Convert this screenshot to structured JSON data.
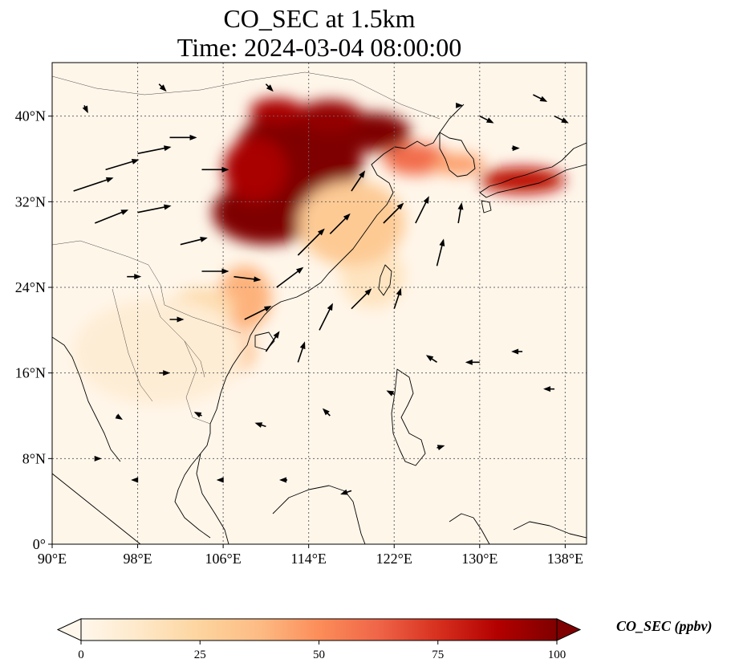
{
  "title": {
    "line1": "CO_SEC at 1.5km",
    "line2": "Time: 2024-03-04 08:00:00"
  },
  "map": {
    "lon_range": [
      90,
      140
    ],
    "lat_range": [
      0,
      45
    ],
    "lon_ticks": [
      {
        "value": 90,
        "label": "90°E"
      },
      {
        "value": 98,
        "label": "98°E"
      },
      {
        "value": 106,
        "label": "106°E"
      },
      {
        "value": 114,
        "label": "114°E"
      },
      {
        "value": 122,
        "label": "122°E"
      },
      {
        "value": 130,
        "label": "130°E"
      },
      {
        "value": 138,
        "label": "138°E"
      }
    ],
    "lat_ticks": [
      {
        "value": 0,
        "label": "0°"
      },
      {
        "value": 8,
        "label": "8°N"
      },
      {
        "value": 16,
        "label": "16°N"
      },
      {
        "value": 24,
        "label": "24°N"
      },
      {
        "value": 32,
        "label": "32°N"
      },
      {
        "value": 40,
        "label": "40°N"
      }
    ],
    "gridlines": true,
    "background_color": "#fff6ea"
  },
  "colorbar": {
    "label": "CO_SEC (ppbv)",
    "min": 0,
    "max": 100,
    "extend": "both",
    "colormap": [
      "#fff7ec",
      "#fee8c8",
      "#fdd49e",
      "#fdbb84",
      "#fc8d59",
      "#ef6548",
      "#d7301f",
      "#b30000",
      "#7f0000"
    ],
    "ticks": [
      {
        "value": 0,
        "label": "0"
      },
      {
        "value": 25,
        "label": "25"
      },
      {
        "value": 50,
        "label": "50"
      },
      {
        "value": 75,
        "label": "75"
      },
      {
        "value": 100,
        "label": "100"
      }
    ]
  },
  "concentration": [
    {
      "lon": 113,
      "lat": 36,
      "rlon": 6,
      "rlat": 5,
      "value": 100
    },
    {
      "lon": 110,
      "lat": 31,
      "rlon": 5,
      "rlat": 3,
      "value": 100
    },
    {
      "lon": 120,
      "lat": 38.5,
      "rlon": 3.5,
      "rlat": 1.8,
      "value": 100
    },
    {
      "lon": 116,
      "lat": 40,
      "rlon": 3,
      "rlat": 1.5,
      "value": 95
    },
    {
      "lon": 111,
      "lat": 40.5,
      "rlon": 2.5,
      "rlat": 1.2,
      "value": 90
    },
    {
      "lon": 109,
      "lat": 35,
      "rlon": 3,
      "rlat": 3,
      "value": 90
    },
    {
      "lon": 124,
      "lat": 36,
      "rlon": 3,
      "rlat": 1.5,
      "value": 60
    },
    {
      "lon": 134,
      "lat": 34,
      "rlon": 4,
      "rlat": 1.2,
      "value": 85
    },
    {
      "lon": 128,
      "lat": 35.5,
      "rlon": 2.5,
      "rlat": 1,
      "value": 45
    },
    {
      "lon": 108,
      "lat": 23,
      "rlon": 2.5,
      "rlat": 3,
      "value": 40
    },
    {
      "lon": 107,
      "lat": 18,
      "rlon": 2,
      "rlat": 2,
      "value": 35
    },
    {
      "lon": 104,
      "lat": 22,
      "rlon": 3,
      "rlat": 2,
      "value": 20
    },
    {
      "lon": 120,
      "lat": 25,
      "rlon": 3,
      "rlat": 3,
      "value": 15
    },
    {
      "lon": 100,
      "lat": 18,
      "rlon": 8,
      "rlat": 5,
      "value": 8
    },
    {
      "lon": 118,
      "lat": 30,
      "rlon": 5,
      "rlat": 4,
      "value": 30
    }
  ],
  "wind_vectors": [
    {
      "lon": 92,
      "lat": 33,
      "u": 6,
      "v": 2
    },
    {
      "lon": 95,
      "lat": 35,
      "u": 5,
      "v": 1.5
    },
    {
      "lon": 98,
      "lat": 36.5,
      "u": 5,
      "v": 1
    },
    {
      "lon": 101,
      "lat": 38,
      "u": 4,
      "v": 0
    },
    {
      "lon": 104,
      "lat": 35,
      "u": 4,
      "v": 0
    },
    {
      "lon": 94,
      "lat": 30,
      "u": 5,
      "v": 2
    },
    {
      "lon": 98,
      "lat": 31,
      "u": 5,
      "v": 1
    },
    {
      "lon": 102,
      "lat": 28,
      "u": 4,
      "v": 1
    },
    {
      "lon": 104,
      "lat": 25.5,
      "u": 4,
      "v": 0
    },
    {
      "lon": 107,
      "lat": 25,
      "u": 4,
      "v": -0.5
    },
    {
      "lon": 108,
      "lat": 21,
      "u": 4,
      "v": 2
    },
    {
      "lon": 111,
      "lat": 24,
      "u": 4,
      "v": 3
    },
    {
      "lon": 113,
      "lat": 27,
      "u": 4,
      "v": 4
    },
    {
      "lon": 116,
      "lat": 29,
      "u": 3,
      "v": 3
    },
    {
      "lon": 118,
      "lat": 33,
      "u": 2,
      "v": 3
    },
    {
      "lon": 121,
      "lat": 30,
      "u": 3,
      "v": 3
    },
    {
      "lon": 124,
      "lat": 30,
      "u": 2,
      "v": 4
    },
    {
      "lon": 126,
      "lat": 26,
      "u": 1,
      "v": 4
    },
    {
      "lon": 128,
      "lat": 30,
      "u": 0.5,
      "v": 3
    },
    {
      "lon": 122,
      "lat": 22,
      "u": 1,
      "v": 3
    },
    {
      "lon": 118,
      "lat": 22,
      "u": 3,
      "v": 3
    },
    {
      "lon": 115,
      "lat": 20,
      "u": 2,
      "v": 4
    },
    {
      "lon": 113,
      "lat": 17,
      "u": 1,
      "v": 3
    },
    {
      "lon": 110,
      "lat": 18,
      "u": 2,
      "v": 3
    },
    {
      "lon": 101,
      "lat": 21,
      "u": 2,
      "v": 0
    },
    {
      "lon": 97,
      "lat": 25,
      "u": 2,
      "v": 0
    },
    {
      "lon": 100,
      "lat": 16,
      "u": 1.5,
      "v": 0
    },
    {
      "lon": 96,
      "lat": 12,
      "u": 0.8,
      "v": -0.5
    },
    {
      "lon": 104,
      "lat": 12,
      "u": -1,
      "v": 0.5
    },
    {
      "lon": 110,
      "lat": 11,
      "u": -1.5,
      "v": 0.5
    },
    {
      "lon": 116,
      "lat": 12,
      "u": -1,
      "v": 1
    },
    {
      "lon": 122,
      "lat": 14,
      "u": -1,
      "v": 0.5
    },
    {
      "lon": 126,
      "lat": 17,
      "u": -1.5,
      "v": 1
    },
    {
      "lon": 130,
      "lat": 17,
      "u": -2,
      "v": 0
    },
    {
      "lon": 134,
      "lat": 18,
      "u": -1.5,
      "v": 0
    },
    {
      "lon": 137,
      "lat": 14.5,
      "u": -1.5,
      "v": 0
    },
    {
      "lon": 126,
      "lat": 9,
      "u": 1,
      "v": 0.3
    },
    {
      "lon": 118,
      "lat": 5,
      "u": -1.5,
      "v": -0.5
    },
    {
      "lon": 112,
      "lat": 6,
      "u": -1,
      "v": 0
    },
    {
      "lon": 106,
      "lat": 6,
      "u": -0.8,
      "v": 0
    },
    {
      "lon": 98,
      "lat": 6,
      "u": -0.8,
      "v": 0
    },
    {
      "lon": 94,
      "lat": 8,
      "u": 0.8,
      "v": 0
    },
    {
      "lon": 130,
      "lat": 40,
      "u": 2,
      "v": -1
    },
    {
      "lon": 135,
      "lat": 42,
      "u": 2,
      "v": -1
    },
    {
      "lon": 137,
      "lat": 40,
      "u": 2,
      "v": -1
    },
    {
      "lon": 133,
      "lat": 37,
      "u": 1,
      "v": 0
    },
    {
      "lon": 128,
      "lat": 41,
      "u": 0.5,
      "v": 0
    },
    {
      "lon": 110,
      "lat": 43,
      "u": 1,
      "v": -1
    },
    {
      "lon": 100,
      "lat": 43,
      "u": 1,
      "v": -1
    },
    {
      "lon": 93,
      "lat": 41,
      "u": 0.5,
      "v": -1
    }
  ]
}
